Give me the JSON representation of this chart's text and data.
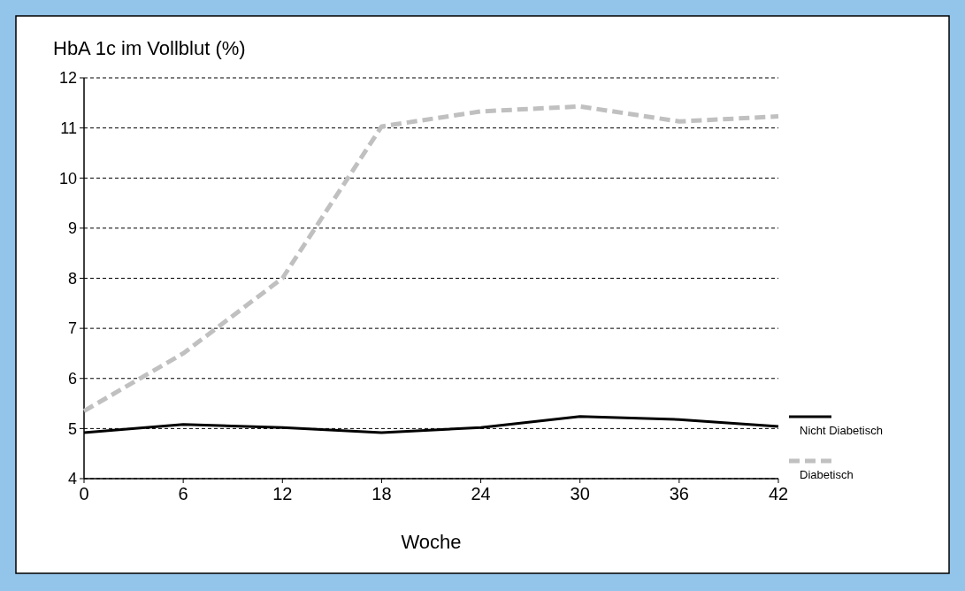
{
  "chart_data": {
    "type": "line",
    "ylabel": "HbA 1c im Vollblut (%)",
    "xlabel": "Woche",
    "x": [
      0,
      6,
      12,
      18,
      24,
      30,
      36,
      42
    ],
    "xlim": [
      0,
      42
    ],
    "xticks": [
      0,
      6,
      12,
      18,
      24,
      30,
      36,
      42
    ],
    "ylim": [
      4,
      12
    ],
    "yticks": [
      4,
      5,
      6,
      7,
      8,
      9,
      10,
      11,
      12
    ],
    "grid": "y",
    "legend": "bottom right",
    "series": [
      {
        "name": "Nicht Diabetisch",
        "color": "#000000",
        "line_style": "solid",
        "values": [
          4.92,
          5.08,
          5.02,
          4.92,
          5.02,
          5.24,
          5.18,
          5.04
        ]
      },
      {
        "name": "Diabetisch",
        "color": "#c0c0c0",
        "line_style": "dashed",
        "values": [
          5.35,
          6.5,
          8.0,
          11.03,
          11.33,
          11.43,
          11.13,
          11.23
        ]
      }
    ]
  }
}
